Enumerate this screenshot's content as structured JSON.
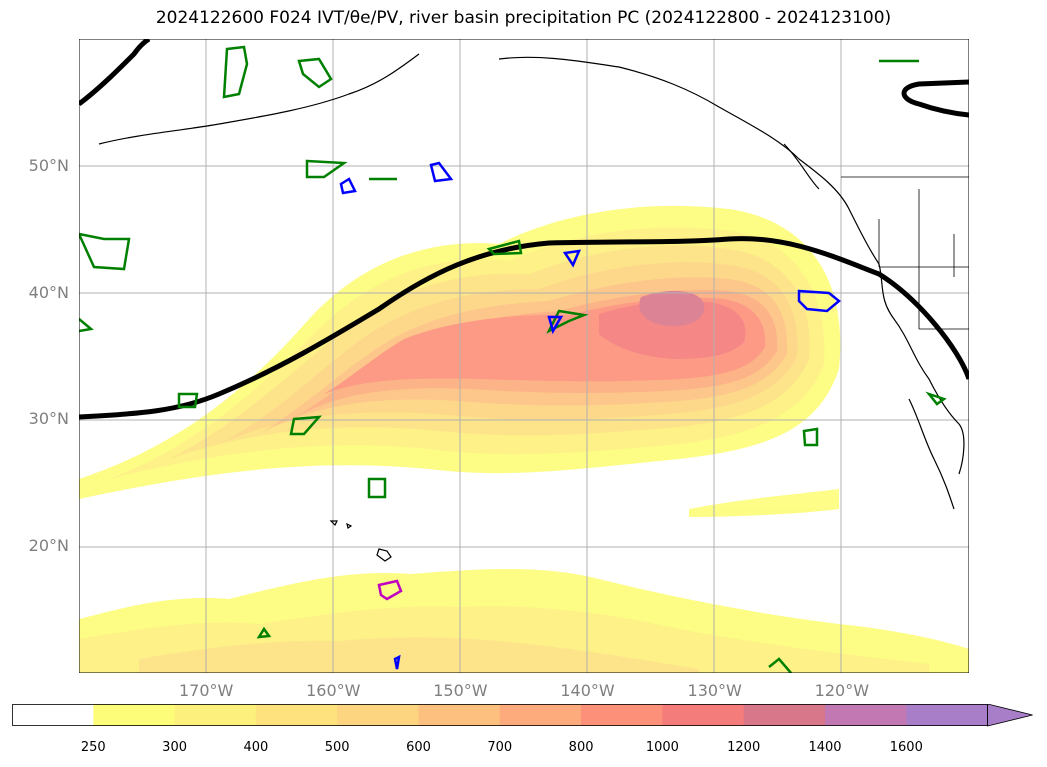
{
  "title": "2024122600 F024 IVT/θe/PV, river basin precipitation PC (2024122800 - 2024123100)",
  "map": {
    "lon_range": [
      -180,
      -110
    ],
    "lat_range": [
      10,
      60
    ],
    "lat_labels": [
      "50°N",
      "40°N",
      "30°N",
      "20°N"
    ],
    "lat_values": [
      50,
      40,
      30,
      20
    ],
    "lon_labels": [
      "170°W",
      "160°W",
      "150°W",
      "140°W",
      "130°W",
      "120°W"
    ],
    "lon_values": [
      -170,
      -160,
      -150,
      -140,
      -130,
      -120
    ],
    "grid": true,
    "land_color": "#ffffff",
    "coastline_color": "#000000",
    "theta_e_contour_color": "#000000",
    "pv_contour_colors": [
      "#008000",
      "#0000ff",
      "#c000c0"
    ]
  },
  "colorbar": {
    "levels": [
      "250",
      "300",
      "400",
      "500",
      "600",
      "700",
      "800",
      "1000",
      "1200",
      "1400",
      "1600"
    ],
    "colors": [
      "#ffffff",
      "#fdfd7a",
      "#fdf07c",
      "#fde27e",
      "#fdd47f",
      "#fdc07e",
      "#fdab7c",
      "#fc9079",
      "#f47c7a",
      "#d9778a",
      "#c278b2",
      "#a87ec9"
    ],
    "extend": "max"
  }
}
